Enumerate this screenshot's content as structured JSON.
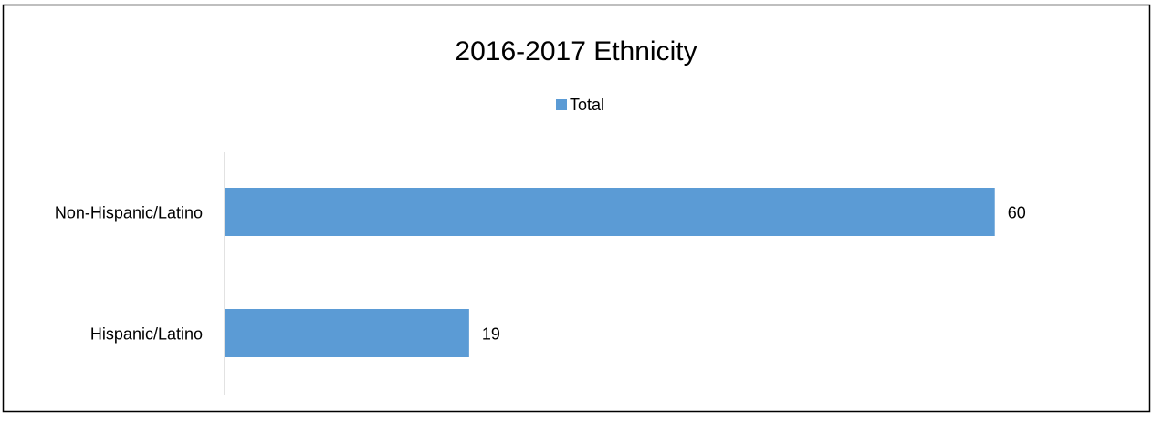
{
  "chart_data": {
    "type": "bar",
    "orientation": "horizontal",
    "title": "2016-2017 Ethnicity",
    "categories": [
      "Non-Hispanic/Latino",
      "Hispanic/Latino"
    ],
    "series": [
      {
        "name": "Total",
        "values": [
          60,
          19
        ],
        "color": "#5b9bd5"
      }
    ],
    "data_labels": [
      "60",
      "19"
    ],
    "xlim": [
      0,
      66
    ],
    "gridlines": false,
    "legend_position": "top"
  }
}
